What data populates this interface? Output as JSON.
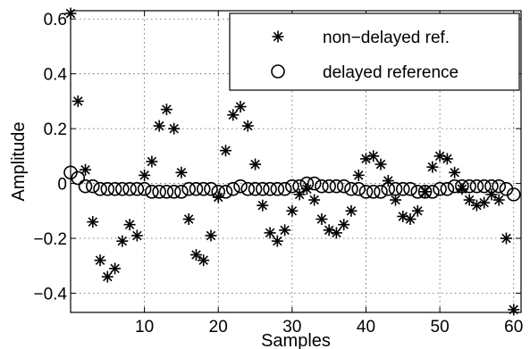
{
  "chart_data": {
    "type": "scatter",
    "title": "",
    "xlabel": "Samples",
    "ylabel": "Amplitude",
    "xlim": [
      0,
      61
    ],
    "ylim": [
      -0.47,
      0.63
    ],
    "grid": true,
    "legend_position": "top-right",
    "x_ticks": [
      10,
      20,
      30,
      40,
      50,
      60
    ],
    "y_ticks": [
      -0.4,
      -0.2,
      0,
      0.2,
      0.4,
      0.6
    ],
    "x_tick_labels": [
      "10",
      "20",
      "30",
      "40",
      "50",
      "60"
    ],
    "y_tick_labels": [
      "−0.4",
      "−0.2",
      "0",
      "0.2",
      "0.4",
      "0.6"
    ],
    "series": [
      {
        "name": "non−delayed ref.",
        "marker": "asterisk",
        "color": "#000000",
        "x": [
          0,
          1,
          2,
          3,
          4,
          5,
          6,
          7,
          8,
          9,
          10,
          11,
          12,
          13,
          14,
          15,
          16,
          17,
          18,
          19,
          20,
          21,
          22,
          23,
          24,
          25,
          26,
          27,
          28,
          29,
          30,
          31,
          32,
          33,
          34,
          35,
          36,
          37,
          38,
          39,
          40,
          41,
          42,
          43,
          44,
          45,
          46,
          47,
          48,
          49,
          50,
          51,
          52,
          53,
          54,
          55,
          56,
          57,
          58,
          59,
          60
        ],
        "y": [
          0.62,
          0.3,
          0.05,
          -0.14,
          -0.28,
          -0.34,
          -0.31,
          -0.21,
          -0.15,
          -0.19,
          0.03,
          0.08,
          0.21,
          0.27,
          0.2,
          0.04,
          -0.13,
          -0.26,
          -0.28,
          -0.19,
          -0.05,
          0.12,
          0.25,
          0.28,
          0.21,
          0.07,
          -0.08,
          -0.18,
          -0.21,
          -0.17,
          -0.1,
          -0.04,
          -0.02,
          -0.06,
          -0.13,
          -0.17,
          -0.18,
          -0.15,
          -0.1,
          0.03,
          0.09,
          0.1,
          0.07,
          0.01,
          -0.06,
          -0.12,
          -0.13,
          -0.1,
          -0.03,
          0.06,
          0.1,
          0.09,
          0.04,
          -0.02,
          -0.06,
          -0.08,
          -0.07,
          -0.04,
          -0.06,
          -0.2,
          -0.46
        ]
      },
      {
        "name": "delayed reference",
        "marker": "circle",
        "color": "#000000",
        "x": [
          0,
          1,
          2,
          3,
          4,
          5,
          6,
          7,
          8,
          9,
          10,
          11,
          12,
          13,
          14,
          15,
          16,
          17,
          18,
          19,
          20,
          21,
          22,
          23,
          24,
          25,
          26,
          27,
          28,
          29,
          30,
          31,
          32,
          33,
          34,
          35,
          36,
          37,
          38,
          39,
          40,
          41,
          42,
          43,
          44,
          45,
          46,
          47,
          48,
          49,
          50,
          51,
          52,
          53,
          54,
          55,
          56,
          57,
          58,
          59,
          60
        ],
        "y": [
          0.04,
          0.02,
          -0.01,
          -0.01,
          -0.02,
          -0.02,
          -0.02,
          -0.02,
          -0.02,
          -0.02,
          -0.02,
          -0.03,
          -0.03,
          -0.03,
          -0.03,
          -0.03,
          -0.02,
          -0.02,
          -0.02,
          -0.02,
          -0.03,
          -0.03,
          -0.02,
          -0.01,
          -0.02,
          -0.02,
          -0.02,
          -0.02,
          -0.02,
          -0.02,
          -0.01,
          -0.01,
          0.0,
          0.0,
          -0.01,
          -0.01,
          -0.01,
          -0.01,
          -0.02,
          -0.02,
          -0.03,
          -0.03,
          -0.03,
          -0.02,
          -0.02,
          -0.02,
          -0.02,
          -0.03,
          -0.03,
          -0.03,
          -0.02,
          -0.02,
          -0.01,
          -0.01,
          -0.01,
          -0.01,
          -0.01,
          -0.01,
          -0.01,
          -0.02,
          -0.04
        ]
      }
    ]
  }
}
